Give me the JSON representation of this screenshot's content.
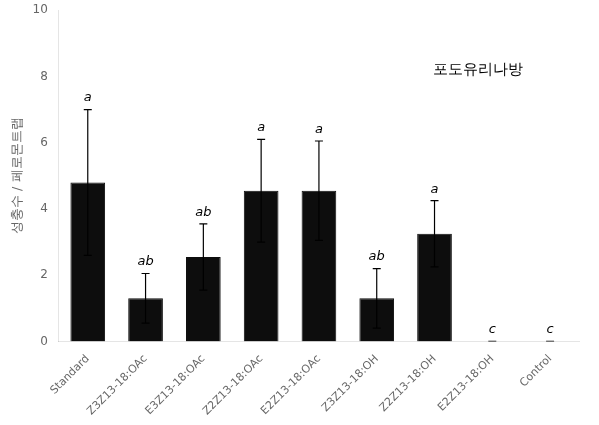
{
  "chart_data": {
    "type": "bar",
    "categories": [
      "Standard",
      "Z3Z13-18:OAc",
      "E3Z13-18:OAc",
      "Z2Z13-18:OAc",
      "E2Z13-18:OAc",
      "Z3Z13-18:OH",
      "Z2Z13-18:OH",
      "E2Z13-18:OH",
      "Control"
    ],
    "values": [
      4.8,
      1.3,
      2.55,
      4.55,
      4.55,
      1.3,
      3.25,
      0.0,
      0.0
    ],
    "errors": [
      2.2,
      0.75,
      1.0,
      1.55,
      1.5,
      0.9,
      1.0,
      0.0,
      0.0
    ],
    "letters": [
      "a",
      "ab",
      "ab",
      "a",
      "a",
      "ab",
      "a",
      "c",
      "c"
    ],
    "color": "#0d0d0d",
    "ylabel": "성충수 / 페로몬트랩",
    "annotation": "포도유리나방",
    "ylim": [
      0,
      10
    ],
    "yticks": [
      0,
      2,
      4,
      6,
      8,
      10
    ],
    "grid": false
  }
}
